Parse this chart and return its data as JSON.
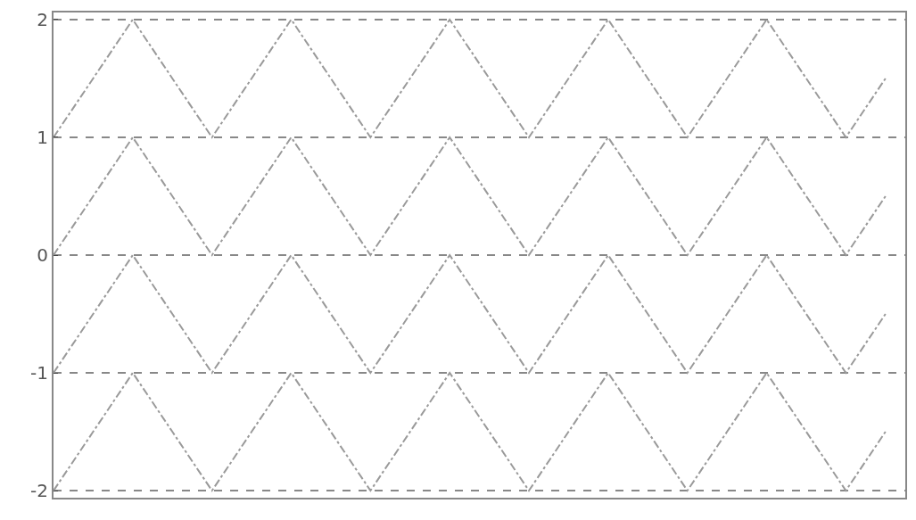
{
  "chart_data": {
    "type": "line",
    "categories": [
      null,
      null,
      null,
      null,
      null,
      null,
      null,
      null,
      null,
      null,
      null,
      null,
      null,
      null,
      null,
      null,
      null,
      null,
      null,
      null,
      null,
      null
    ],
    "series": [
      {
        "color": "#9a9a9a",
        "values": [
          1,
          1.5,
          2,
          1.5,
          1,
          1.5,
          2,
          1.5,
          1,
          1.5,
          2,
          1.5,
          1,
          1.5,
          2,
          1.5,
          1,
          1.5,
          2,
          1.5,
          1,
          1.5
        ]
      },
      {
        "color": "#9a9a9a",
        "values": [
          0,
          0.5,
          1,
          0.5,
          0,
          0.5,
          1,
          0.5,
          0,
          0.5,
          1,
          0.5,
          0,
          0.5,
          1,
          0.5,
          0,
          0.5,
          1,
          0.5,
          0,
          0.5
        ]
      },
      {
        "color": "#9a9a9a",
        "values": [
          -1,
          -0.5,
          0,
          -0.5,
          -1,
          -0.5,
          0,
          -0.5,
          -1,
          -0.5,
          0,
          -0.5,
          -1,
          -0.5,
          0,
          -0.5,
          -1,
          -0.5,
          0,
          -0.5,
          -1,
          -0.5
        ]
      },
      {
        "color": "#9a9a9a",
        "values": [
          -2,
          -1.5,
          -1,
          -1.5,
          -2,
          -1.5,
          -1,
          -1.5,
          -2,
          -1.5,
          -1,
          -1.5,
          -2,
          -1.5,
          -1,
          -1.5,
          -2,
          -1.5,
          -1,
          -1.5,
          -2,
          -1.5
        ]
      }
    ],
    "ylim": [
      -2.06,
      2.06
    ],
    "yticks": [
      -2,
      -1,
      0,
      1,
      2
    ],
    "grid": "y",
    "legend": false,
    "tick_labels": "y",
    "line_style": "dashed",
    "marker": "none"
  }
}
